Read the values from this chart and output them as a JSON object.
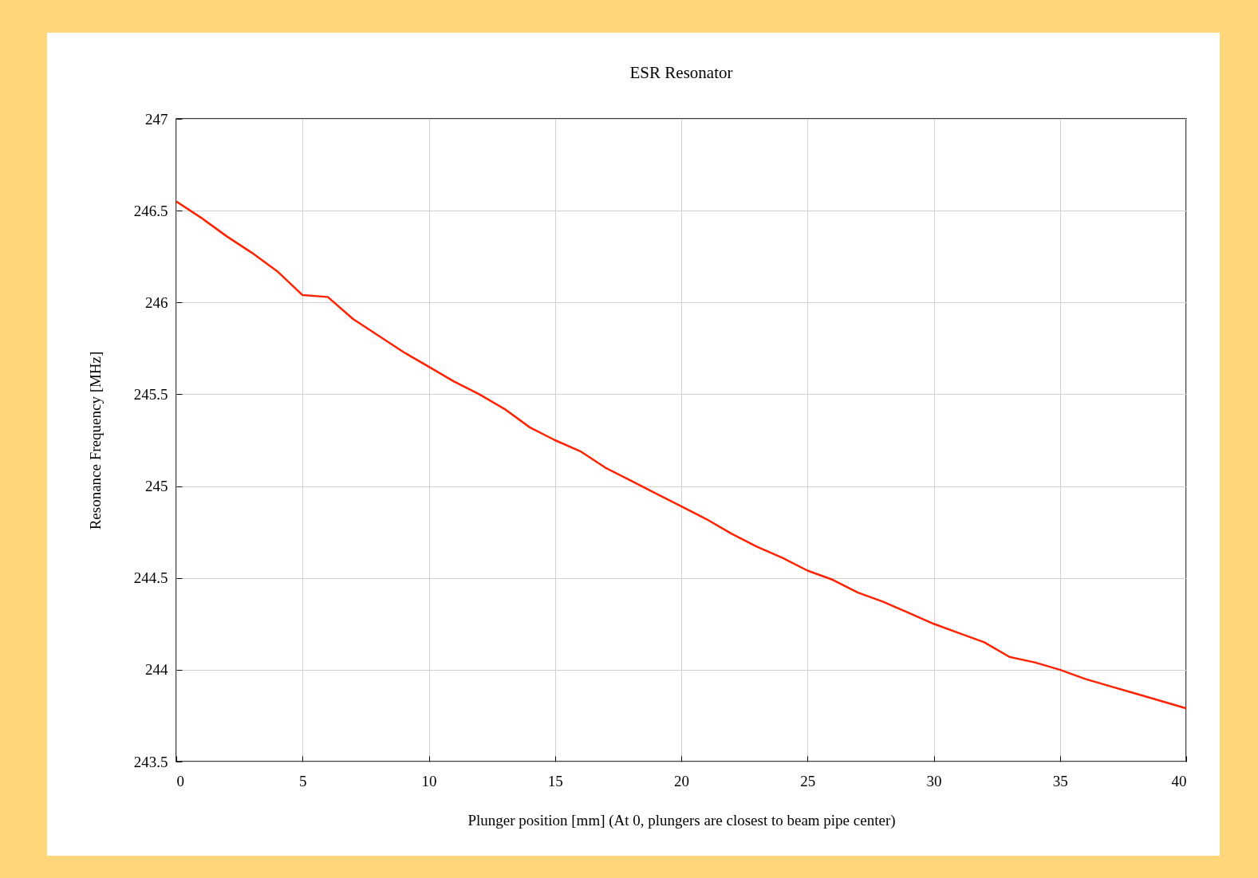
{
  "chart_data": {
    "type": "line",
    "title": "ESR Resonator",
    "xlabel": "Plunger position [mm] (At 0, plungers are closest to beam pipe center)",
    "ylabel": "Resonance Frequency [MHz]",
    "x": [
      0,
      1,
      2,
      3,
      4,
      5,
      6,
      7,
      8,
      9,
      10,
      11,
      12,
      13,
      14,
      15,
      16,
      17,
      18,
      19,
      20,
      21,
      22,
      23,
      24,
      25,
      26,
      27,
      28,
      29,
      30,
      31,
      32,
      33,
      34,
      35,
      36,
      37,
      38,
      39,
      40
    ],
    "series": [
      {
        "color": "#ff2200",
        "values": [
          246.55,
          246.46,
          246.36,
          246.27,
          246.17,
          246.04,
          246.03,
          245.91,
          245.82,
          245.73,
          245.65,
          245.57,
          245.5,
          245.42,
          245.32,
          245.25,
          245.19,
          245.1,
          245.03,
          244.96,
          244.89,
          244.82,
          244.74,
          244.67,
          244.61,
          244.54,
          244.49,
          244.42,
          244.37,
          244.31,
          244.25,
          244.2,
          244.15,
          244.07,
          244.04,
          244.0,
          243.95,
          243.91,
          243.87,
          243.83,
          243.79
        ]
      }
    ],
    "xlim": [
      0,
      40
    ],
    "xticks": [
      0,
      5,
      10,
      15,
      20,
      25,
      30,
      35,
      40
    ],
    "ylim": [
      243.5,
      247
    ],
    "yticks": [
      243.5,
      244,
      244.5,
      245,
      245.5,
      246,
      246.5,
      247
    ],
    "grid": true,
    "marker": "none",
    "line_style": "solid",
    "legend": false
  }
}
